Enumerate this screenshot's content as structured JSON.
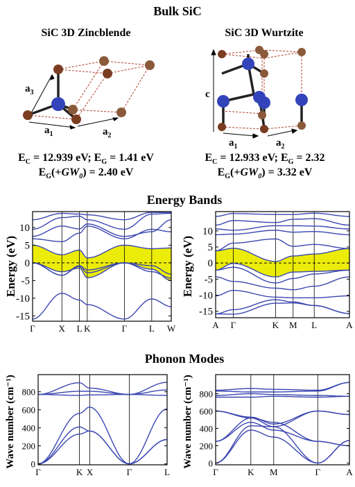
{
  "figure": {
    "title": "Bulk SiC",
    "energy_bands_title": "Energy Bands",
    "phonon_title": "Phonon Modes"
  },
  "structures": {
    "zincblende": {
      "title": "SiC 3D Zincblende",
      "vectors": [
        "a",
        "a",
        "a"
      ],
      "vector_subs": [
        "3",
        "1",
        "2"
      ],
      "energy_line1": {
        "ec_label": "E",
        "ec_sub": "C",
        "ec_value": " = 12.939 eV; ",
        "eg_label": "E",
        "eg_sub": "G",
        "eg_value": " = 1.41 eV"
      },
      "energy_line2": {
        "label": "E",
        "sub": "G",
        "pre": "(+",
        "gw": "GW",
        "gw_sub": "0",
        "post": ") = 2.40 eV"
      }
    },
    "wurtzite": {
      "title": "SiC 3D Wurtzite",
      "vectors": [
        "c",
        "a",
        "a"
      ],
      "vector_subs": [
        "",
        "1",
        "2"
      ],
      "energy_line1": {
        "ec_label": "E",
        "ec_sub": "C",
        "ec_value": " = 12.933  eV; ",
        "eg_label": "E",
        "eg_sub": "G",
        "eg_value": " = 2.32"
      },
      "energy_line2": {
        "label": "E",
        "sub": "G",
        "pre": "(+",
        "gw": "GW",
        "gw_sub": "0",
        "post": ") = 3.32 eV"
      }
    }
  },
  "colors": {
    "band_line": "#3a46b0",
    "band_fill": "#ecec0a",
    "atom_si": "#3344bb",
    "atom_c": "#7a3d22",
    "bond": "#222222",
    "dashed_cell": "#b04030"
  },
  "chart_data": [
    {
      "type": "line",
      "name": "zincblende-bands",
      "ylabel": "Energy (eV)",
      "ylim": [
        -16.5,
        14.5
      ],
      "yticks": [
        10,
        5,
        0,
        -5,
        -10,
        -15
      ],
      "ytick_labels": [
        "10",
        "5",
        "0",
        "-5",
        "-10",
        "-15"
      ],
      "kpoints": [
        0,
        1.5,
        2.4,
        2.8,
        4.7,
        6.1,
        7.1
      ],
      "kpoint_labels": [
        "Γ",
        "X",
        "L",
        "K",
        "Γ",
        "L",
        "W"
      ],
      "gap_fill": {
        "lower": [
          0,
          -2.5,
          -1.5,
          -4.2,
          0,
          -1.8,
          -5
        ],
        "upper": [
          5,
          2.3,
          3.6,
          1.4,
          5,
          4,
          4.2
        ]
      },
      "series": [
        {
          "values": [
            -15.9,
            -8.6,
            -10.5,
            -11.8,
            -15.9,
            -10.2,
            -12.4
          ]
        },
        {
          "values": [
            0,
            -2.5,
            -1.5,
            -4.2,
            0,
            -1.8,
            -5
          ]
        },
        {
          "values": [
            0,
            -3.5,
            -1,
            -2.8,
            0,
            -2.5,
            -4.3
          ]
        },
        {
          "values": [
            0,
            -3.5,
            -0.8,
            -2,
            0,
            -0.8,
            -3.2
          ]
        },
        {
          "values": [
            5,
            2.3,
            3.6,
            1.4,
            5,
            4,
            4.2
          ]
        },
        {
          "values": [
            6.8,
            6,
            8.4,
            10.4,
            6.8,
            9.5,
            8.8
          ]
        },
        {
          "values": [
            7.5,
            10.4,
            9.6,
            11,
            7.5,
            8.8,
            12.2
          ]
        },
        {
          "values": [
            9.5,
            12.8,
            13.2,
            12.2,
            9.5,
            13.8,
            14
          ]
        },
        {
          "values": [
            12.2,
            14,
            13.8,
            13.6,
            12.2,
            14.3,
            14.2
          ]
        }
      ]
    },
    {
      "type": "line",
      "name": "wurtzite-bands",
      "ylim": [
        -17,
        16
      ],
      "yticks": [
        10,
        5,
        0,
        -5,
        -10,
        -15
      ],
      "ytick_labels": [
        "10",
        "5",
        "0",
        "-5",
        "-10",
        "-15"
      ],
      "kpoints": [
        0,
        1,
        3.4,
        4.4,
        5.6,
        7.6
      ],
      "kpoint_labels": [
        "A",
        "Γ",
        "K",
        "M",
        "L",
        "A"
      ],
      "gap_fill": {
        "lower": [
          -2.2,
          -0.1,
          -4.3,
          -2.8,
          -2.6,
          -2.2
        ],
        "upper": [
          3.8,
          4.6,
          0.5,
          2.2,
          2.8,
          4.5
        ]
      },
      "series": [
        {
          "values": [
            -15.8,
            -15.9,
            -12.5,
            -12.4,
            -13.2,
            -15.7
          ]
        },
        {
          "values": [
            -15.8,
            -14.5,
            -11.4,
            -12.1,
            -13.2,
            -15.7
          ]
        },
        {
          "values": [
            -10.2,
            -8.5,
            -10.6,
            -10.8,
            -10.8,
            -10.2
          ]
        },
        {
          "values": [
            -4.3,
            -5.7,
            -7.8,
            -8.3,
            -7.2,
            -4.3
          ]
        },
        {
          "values": [
            -2.2,
            -1.3,
            -6.2,
            -4.8,
            -3.4,
            -2.2
          ]
        },
        {
          "values": [
            -2.2,
            -0.1,
            -4.3,
            -2.8,
            -2.6,
            -2.2
          ]
        },
        {
          "values": [
            3.8,
            4.6,
            0.5,
            2.2,
            2.8,
            4.5
          ]
        },
        {
          "values": [
            3.8,
            6.2,
            7.5,
            5.2,
            5.8,
            4.5
          ]
        },
        {
          "values": [
            8.8,
            9,
            10.2,
            9.6,
            9.8,
            8.8
          ]
        },
        {
          "values": [
            10.6,
            10.2,
            11.6,
            11.6,
            11.5,
            10.6
          ]
        },
        {
          "values": [
            11.8,
            13.2,
            12.6,
            13.6,
            13.8,
            11.8
          ]
        },
        {
          "values": [
            14.5,
            15.4,
            15.1,
            15.1,
            15.5,
            14.5
          ]
        }
      ]
    },
    {
      "type": "line",
      "name": "zincblende-phonons",
      "ylabel": "Wave number (cm⁻¹)",
      "ylim": [
        -10,
        990
      ],
      "yticks": [
        0,
        200,
        400,
        600,
        800
      ],
      "ytick_labels": [
        "0",
        "200",
        "400",
        "600",
        "800"
      ],
      "kpoints": [
        0,
        2.4,
        3,
        5.3,
        7.5
      ],
      "kpoint_labels": [
        "Γ",
        "K",
        "X",
        "Γ",
        "L"
      ],
      "series": [
        {
          "values": [
            0,
            330,
            365,
            0,
            270
          ]
        },
        {
          "values": [
            0,
            410,
            365,
            0,
            270
          ]
        },
        {
          "values": [
            0,
            560,
            630,
            0,
            610
          ]
        },
        {
          "values": [
            770,
            760,
            765,
            770,
            760
          ]
        },
        {
          "values": [
            770,
            805,
            805,
            770,
            820
          ]
        },
        {
          "values": [
            770,
            900,
            840,
            770,
            905
          ]
        }
      ]
    },
    {
      "type": "line",
      "name": "wurtzite-phonons",
      "ylabel": "Wave number (cm⁻¹)",
      "ylim": [
        -20,
        1020
      ],
      "yticks": [
        0,
        200,
        400,
        600,
        800
      ],
      "ytick_labels": [
        "0",
        "200",
        "400",
        "600",
        "800"
      ],
      "kpoints": [
        0,
        2,
        3.3,
        5.8,
        7.6
      ],
      "kpoint_labels": [
        "Γ",
        "K",
        "M",
        "Γ",
        "A"
      ],
      "series": [
        {
          "values": [
            0,
            380,
            300,
            0,
            260
          ]
        },
        {
          "values": [
            0,
            430,
            420,
            0,
            260
          ]
        },
        {
          "values": [
            250,
            520,
            470,
            250,
            200
          ]
        },
        {
          "values": [
            250,
            470,
            380,
            250,
            200
          ]
        },
        {
          "values": [
            600,
            530,
            450,
            600,
            560
          ]
        },
        {
          "values": [
            600,
            520,
            420,
            600,
            560
          ]
        },
        {
          "values": [
            760,
            760,
            770,
            760,
            770
          ]
        },
        {
          "values": [
            780,
            800,
            790,
            780,
            770
          ]
        },
        {
          "values": [
            830,
            820,
            820,
            830,
            930
          ]
        },
        {
          "values": [
            840,
            860,
            850,
            840,
            930
          ]
        }
      ]
    }
  ]
}
